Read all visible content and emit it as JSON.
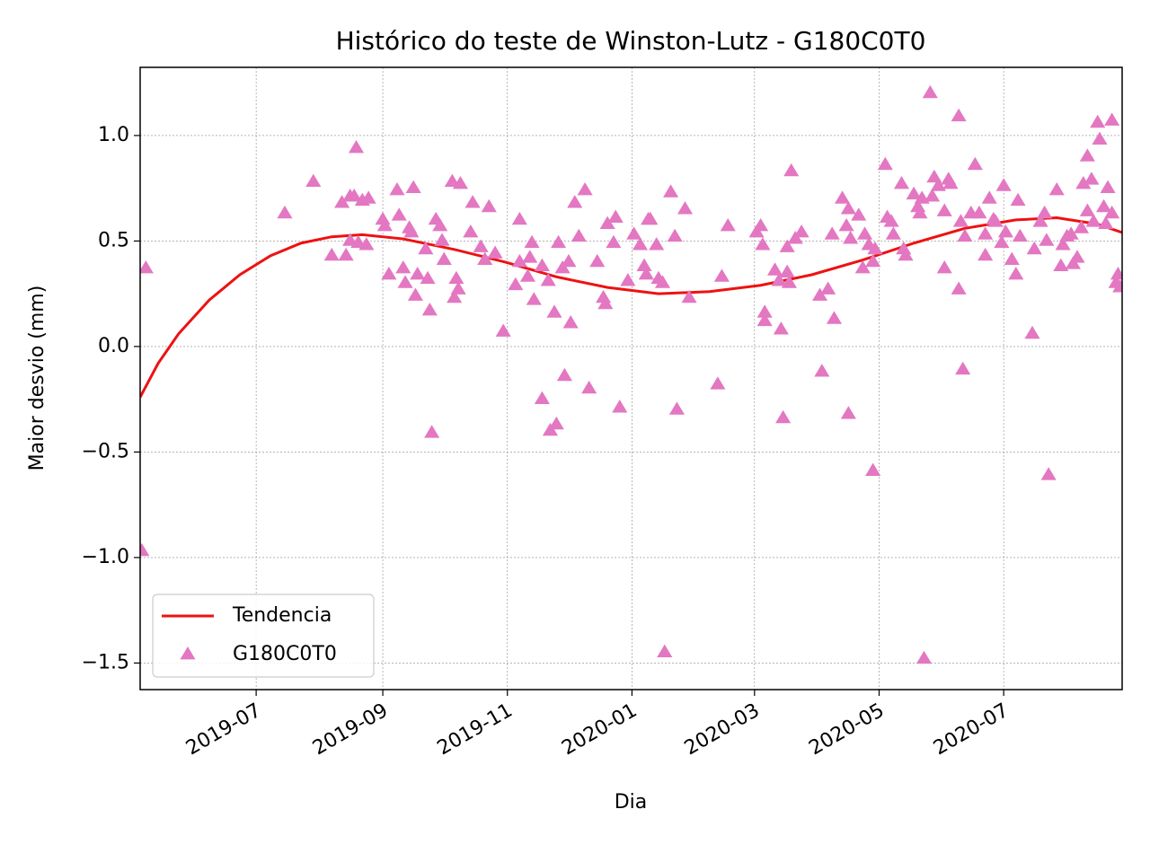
{
  "chart_data": {
    "type": "scatter",
    "title": "Histórico do teste de Winston-Lutz - G180C0T0",
    "xlabel": "Dia",
    "ylabel": "Maior desvio (mm)",
    "xlim": [
      18021.2,
      18502
    ],
    "ylim": [
      -1.626,
      1.323
    ],
    "xticks": [
      {
        "value": 18078,
        "label": "2019-07"
      },
      {
        "value": 18140,
        "label": "2019-09"
      },
      {
        "value": 18201,
        "label": "2019-11"
      },
      {
        "value": 18262,
        "label": "2020-01"
      },
      {
        "value": 18322,
        "label": "2020-03"
      },
      {
        "value": 18383,
        "label": "2020-05"
      },
      {
        "value": 18444,
        "label": "2020-07"
      }
    ],
    "yticks": [
      {
        "value": -1.5,
        "label": "−1.5"
      },
      {
        "value": -1,
        "label": "−1.0"
      },
      {
        "value": -0.5,
        "label": "−0.5"
      },
      {
        "value": 0,
        "label": "0.0"
      },
      0.5,
      {
        "value": 1,
        "label": "1.0"
      }
    ],
    "grid": true,
    "legend": "lower left",
    "series": [
      {
        "name": "Tendencia",
        "type": "line",
        "color": "#ee1111",
        "x": [
          18021.2,
          18030,
          18040,
          18055,
          18070,
          18085,
          18100,
          18115,
          18130,
          18150,
          18175,
          18200,
          18225,
          18250,
          18275,
          18300,
          18325,
          18350,
          18375,
          18400,
          18425,
          18450,
          18470,
          18490,
          18502
        ],
        "values": [
          -0.24,
          -0.08,
          0.06,
          0.22,
          0.34,
          0.43,
          0.49,
          0.52,
          0.53,
          0.51,
          0.46,
          0.4,
          0.33,
          0.28,
          0.25,
          0.26,
          0.29,
          0.34,
          0.41,
          0.49,
          0.56,
          0.6,
          0.61,
          0.58,
          0.54
        ]
      },
      {
        "name": "G180C0T0",
        "type": "scatter",
        "color": "#e377c2",
        "x": [
          18022,
          18024,
          18092,
          18106,
          18115,
          18120,
          18122,
          18124,
          18124,
          18126,
          18127,
          18128,
          18130,
          18132,
          18133,
          18140,
          18141,
          18143,
          18147,
          18148,
          18150,
          18151,
          18153,
          18154,
          18155,
          18156,
          18157,
          18161,
          18162,
          18163,
          18164,
          18166,
          18168,
          18169,
          18170,
          18174,
          18175,
          18176,
          18177,
          18178,
          18183,
          18184,
          18188,
          18190,
          18192,
          18195,
          18199,
          18205,
          18207,
          18207,
          18211,
          18212,
          18213,
          18214,
          18218,
          18218,
          18221,
          18222,
          18224,
          18225,
          18226,
          18228,
          18229,
          18231,
          18232,
          18234,
          18236,
          18239,
          18241,
          18245,
          18248,
          18249,
          18250,
          18253,
          18254,
          18256,
          18260,
          18263,
          18266,
          18268,
          18269,
          18270,
          18271,
          18274,
          18275,
          18277,
          18278,
          18281,
          18283,
          18284,
          18288,
          18290,
          18304,
          18306,
          18309,
          18323,
          18325,
          18326,
          18327,
          18327,
          18332,
          18334,
          18335,
          18336,
          18338,
          18338,
          18339,
          18340,
          18342,
          18345,
          18354,
          18355,
          18358,
          18360,
          18361,
          18365,
          18367,
          18368,
          18368,
          18369,
          18373,
          18375,
          18376,
          18378,
          18380,
          18380,
          18381,
          18386,
          18387,
          18389,
          18390,
          18394,
          18395,
          18396,
          18400,
          18402,
          18403,
          18404,
          18405,
          18408,
          18409,
          18410,
          18412,
          18415,
          18415,
          18417,
          18418,
          18422,
          18422,
          18423,
          18424,
          18425,
          18428,
          18430,
          18432,
          18435,
          18435,
          18437,
          18439,
          18440,
          18443,
          18444,
          18445,
          18448,
          18450,
          18451,
          18452,
          18458,
          18459,
          18462,
          18464,
          18465,
          18466,
          18470,
          18472,
          18473,
          18475,
          18477,
          18478,
          18480,
          18482,
          18483,
          18485,
          18485,
          18487,
          18488,
          18490,
          18491,
          18493,
          18494,
          18495,
          18497,
          18497,
          18499,
          18500,
          18501
        ],
        "values": [
          -0.97,
          0.37,
          0.63,
          0.78,
          0.43,
          0.68,
          0.43,
          0.71,
          0.5,
          0.71,
          0.94,
          0.49,
          0.69,
          0.48,
          0.7,
          0.6,
          0.57,
          0.34,
          0.74,
          0.62,
          0.37,
          0.3,
          0.56,
          0.54,
          0.75,
          0.24,
          0.34,
          0.46,
          0.32,
          0.17,
          -0.41,
          0.6,
          0.57,
          0.5,
          0.41,
          0.78,
          0.23,
          0.32,
          0.27,
          0.77,
          0.54,
          0.68,
          0.47,
          0.41,
          0.66,
          0.44,
          0.07,
          0.29,
          0.6,
          0.4,
          0.33,
          0.42,
          0.49,
          0.22,
          0.38,
          -0.25,
          0.31,
          -0.4,
          0.16,
          -0.37,
          0.49,
          0.37,
          -0.14,
          0.4,
          0.11,
          0.68,
          0.52,
          0.74,
          -0.2,
          0.4,
          0.23,
          0.2,
          0.58,
          0.49,
          0.61,
          -0.29,
          0.31,
          0.53,
          0.48,
          0.38,
          0.34,
          0.6,
          0.6,
          0.48,
          0.32,
          0.3,
          -1.45,
          0.73,
          0.52,
          -0.3,
          0.65,
          0.23,
          -0.18,
          0.33,
          0.57,
          0.54,
          0.57,
          0.48,
          0.16,
          0.12,
          0.36,
          0.31,
          0.08,
          -0.34,
          0.47,
          0.35,
          0.3,
          0.83,
          0.51,
          0.54,
          0.24,
          -0.12,
          0.27,
          0.53,
          0.13,
          0.7,
          0.57,
          -0.32,
          0.65,
          0.51,
          0.62,
          0.37,
          0.53,
          0.48,
          -0.59,
          0.4,
          0.46,
          0.86,
          0.61,
          0.59,
          0.53,
          0.77,
          0.46,
          0.43,
          0.72,
          0.66,
          0.63,
          0.7,
          -1.48,
          1.2,
          0.71,
          0.8,
          0.76,
          0.37,
          0.64,
          0.79,
          0.77,
          1.09,
          0.27,
          0.59,
          -0.11,
          0.52,
          0.63,
          0.86,
          0.63,
          0.43,
          0.53,
          0.7,
          0.6,
          0.59,
          0.49,
          0.76,
          0.54,
          0.41,
          0.34,
          0.69,
          0.52,
          0.06,
          0.46,
          0.59,
          0.63,
          0.5,
          -0.61,
          0.74,
          0.38,
          0.48,
          0.52,
          0.53,
          0.39,
          0.42,
          0.56,
          0.77,
          0.64,
          0.9,
          0.79,
          0.59,
          1.06,
          0.98,
          0.66,
          0.58,
          0.75,
          0.63,
          1.07,
          0.3,
          0.34,
          0.28
        ]
      }
    ]
  }
}
